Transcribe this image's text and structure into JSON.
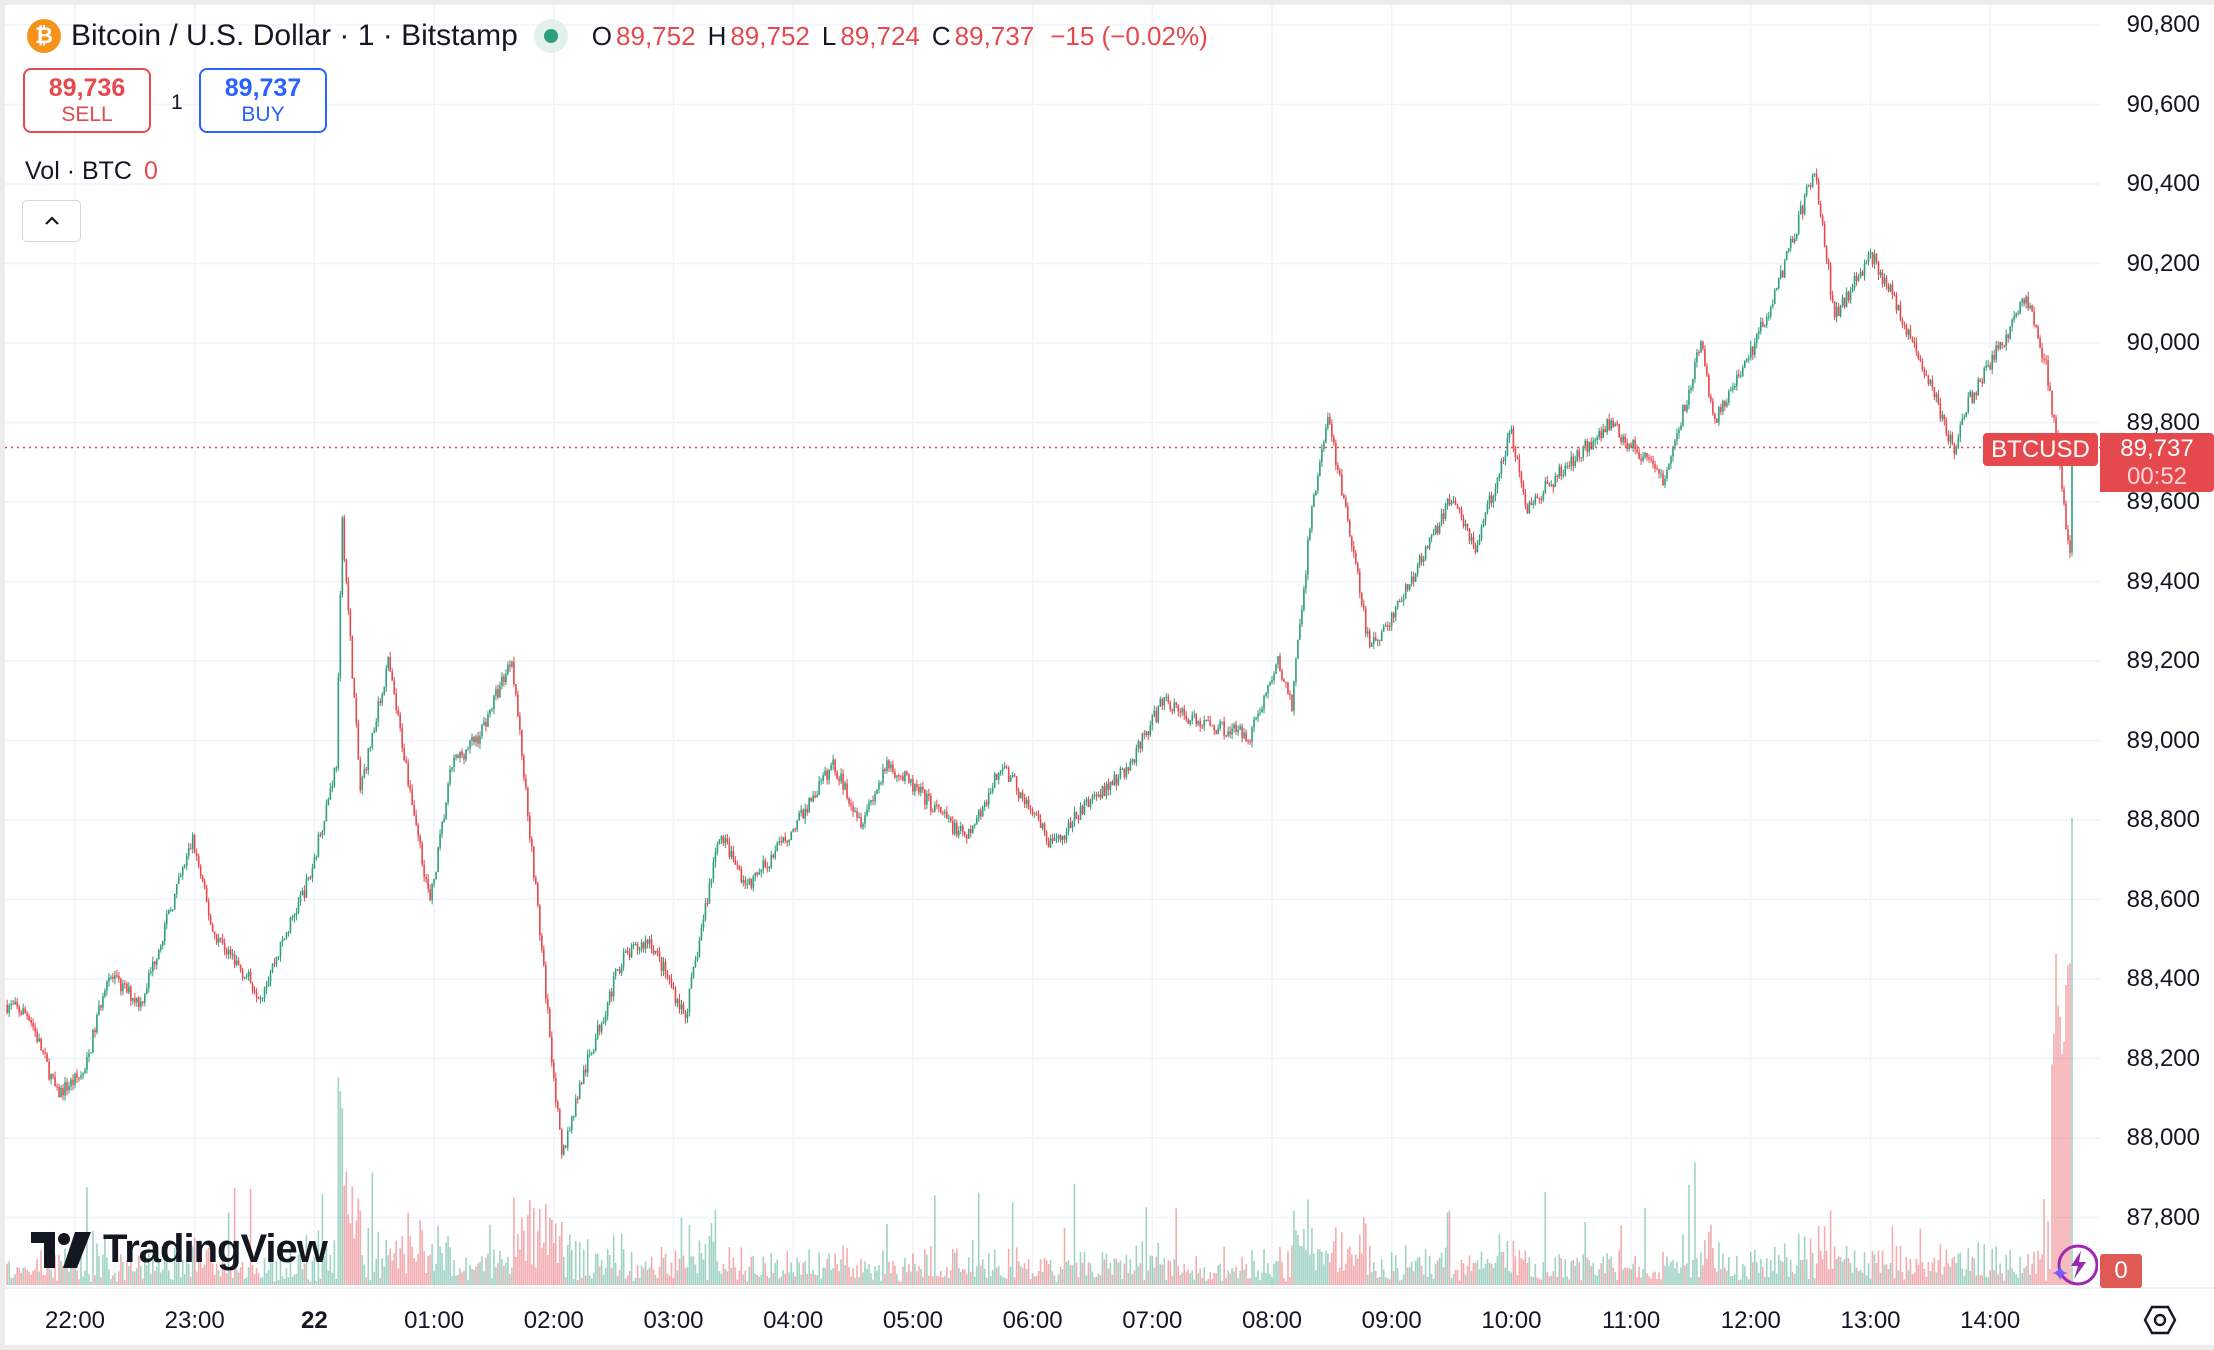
{
  "header": {
    "symbol_icon": "bitcoin-icon",
    "title": "Bitcoin / U.S. Dollar · 1 · Bitstamp",
    "ohlc": {
      "o_label": "O",
      "o": "89,752",
      "h_label": "H",
      "h": "89,752",
      "l_label": "L",
      "l": "89,724",
      "c_label": "C",
      "c": "89,737",
      "change": "−15 (−0.02%)"
    }
  },
  "trade": {
    "sell_price": "89,736",
    "sell_label": "SELL",
    "quantity": "1",
    "buy_price": "89,737",
    "buy_label": "BUY"
  },
  "volume": {
    "label": "Vol · BTC",
    "value": "0"
  },
  "collapse_icon": "chevron-up-icon",
  "logo": "TradingView",
  "price_tag": {
    "symbol": "BTCUSD",
    "price": "89,737",
    "countdown": "00:52"
  },
  "alert_count": "0",
  "colors": {
    "up": "#2f9e7e",
    "down": "#e5484d",
    "sell": "#e5484d",
    "buy": "#2962ff",
    "last_price_line": "#e5484d",
    "bitcoin": "#f7931a"
  },
  "chart_data": {
    "type": "candlestick",
    "interval": "1 minute",
    "symbol": "BTCUSD",
    "y_ticks": [
      "90,800",
      "90,600",
      "90,400",
      "90,200",
      "90,000",
      "89,800",
      "89,600",
      "89,400",
      "89,200",
      "89,000",
      "88,800",
      "88,600",
      "88,400",
      "88,200",
      "88,000",
      "87,800"
    ],
    "ylim": [
      87630,
      90820
    ],
    "x_ticks": [
      "22:00",
      "23:00",
      "22",
      "01:00",
      "02:00",
      "03:00",
      "04:00",
      "05:00",
      "06:00",
      "07:00",
      "08:00",
      "09:00",
      "10:00",
      "11:00",
      "12:00",
      "13:00",
      "14:00"
    ],
    "last_price": 89737,
    "grid": true,
    "approx_price_path": [
      [
        "21:26",
        88335
      ],
      [
        "21:37",
        88310
      ],
      [
        "21:51",
        88110
      ],
      [
        "22:05",
        88165
      ],
      [
        "22:16",
        88410
      ],
      [
        "22:33",
        88340
      ],
      [
        "22:59",
        88750
      ],
      [
        "23:09",
        88520
      ],
      [
        "23:33",
        88360
      ],
      [
        "23:58",
        88660
      ],
      [
        "00:11",
        88945
      ],
      [
        "00:14",
        89550
      ],
      [
        "00:23",
        88875
      ],
      [
        "00:37",
        89195
      ],
      [
        "00:58",
        88590
      ],
      [
        "01:09",
        88940
      ],
      [
        "01:23",
        89015
      ],
      [
        "01:39",
        89210
      ],
      [
        "01:51",
        88625
      ],
      [
        "02:04",
        87950
      ],
      [
        "02:13",
        88130
      ],
      [
        "02:34",
        88450
      ],
      [
        "02:48",
        88500
      ],
      [
        "03:06",
        88305
      ],
      [
        "03:23",
        88770
      ],
      [
        "03:37",
        88630
      ],
      [
        "03:59",
        88770
      ],
      [
        "04:20",
        88940
      ],
      [
        "04:34",
        88800
      ],
      [
        "04:48",
        88940
      ],
      [
        "05:09",
        88840
      ],
      [
        "05:27",
        88750
      ],
      [
        "05:45",
        88940
      ],
      [
        "06:10",
        88730
      ],
      [
        "06:27",
        88840
      ],
      [
        "06:48",
        88930
      ],
      [
        "07:06",
        89105
      ],
      [
        "07:20",
        89050
      ],
      [
        "07:49",
        89015
      ],
      [
        "08:03",
        89195
      ],
      [
        "08:10",
        89090
      ],
      [
        "08:20",
        89585
      ],
      [
        "08:28",
        89815
      ],
      [
        "08:38",
        89550
      ],
      [
        "08:49",
        89230
      ],
      [
        "08:59",
        89300
      ],
      [
        "09:10",
        89405
      ],
      [
        "09:31",
        89620
      ],
      [
        "09:42",
        89480
      ],
      [
        "10:00",
        89780
      ],
      [
        "10:07",
        89585
      ],
      [
        "10:28",
        89690
      ],
      [
        "10:49",
        89800
      ],
      [
        "11:17",
        89655
      ],
      [
        "11:35",
        89995
      ],
      [
        "11:42",
        89800
      ],
      [
        "12:00",
        89975
      ],
      [
        "12:14",
        90150
      ],
      [
        "12:32",
        90440
      ],
      [
        "12:42",
        90065
      ],
      [
        "13:00",
        90225
      ],
      [
        "13:11",
        90120
      ],
      [
        "13:32",
        89870
      ],
      [
        "13:42",
        89725
      ],
      [
        "13:49",
        89850
      ],
      [
        "14:07",
        90010
      ],
      [
        "14:18",
        90120
      ],
      [
        "14:28",
        89940
      ],
      [
        "14:34",
        89730
      ],
      [
        "14:40",
        89460
      ],
      [
        "14:41",
        89737
      ]
    ]
  }
}
